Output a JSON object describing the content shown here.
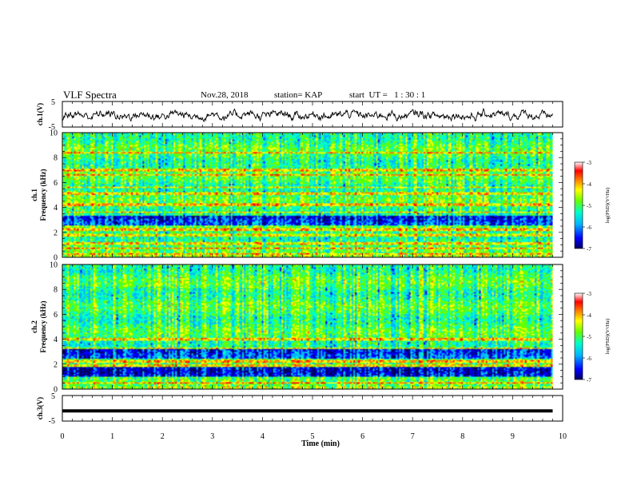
{
  "header": {
    "title": "VLF Spectra",
    "date": "Nov.28, 2018",
    "station": "station= KAP",
    "start_ut": "start  UT =   1 : 30 : 1"
  },
  "colors": {
    "trace": "#000000",
    "axes": "#000000",
    "colormap": [
      "#000060",
      "#0000ff",
      "#00b4ff",
      "#00ffc8",
      "#64ff00",
      "#ffff00",
      "#ff7800",
      "#ff0000",
      "#ffffff"
    ]
  },
  "chart_data": [
    {
      "type": "line",
      "name": "ch1-waveform",
      "ylabel": "ch.1(V)",
      "yticks": [
        "5",
        "-5"
      ],
      "ylim": [
        -5,
        5
      ],
      "xlim": [
        0,
        10
      ],
      "note_values": "noisy waveform roughly between -4 and 2 V over 0–9.8 min"
    },
    {
      "type": "heatmap",
      "name": "ch1-spectrogram",
      "ylabel_top": "ch.1",
      "ylabel": "Frequency (kHz)",
      "yticks": [
        "0",
        "2",
        "4",
        "6",
        "8",
        "10"
      ],
      "ylim": [
        0,
        10
      ],
      "xlim": [
        0,
        9.8
      ],
      "colorbar": {
        "label": "log(PSD)(V²/Hz)",
        "ticks": [
          "-3",
          "-4",
          "-5",
          "-6",
          "-7"
        ],
        "range": [
          -7,
          -3
        ]
      },
      "dark_bands_kHz": [
        [
          2.6,
          3.3
        ]
      ],
      "bright_lines_kHz": [
        0.3,
        0.7,
        1.1,
        1.8,
        2.2,
        3.6,
        4.2,
        5.1,
        5.6,
        6.6,
        7.0,
        8.4
      ]
    },
    {
      "type": "heatmap",
      "name": "ch2-spectrogram",
      "ylabel_top": "ch.2",
      "ylabel": "Frequency (kHz)",
      "yticks": [
        "0",
        "2",
        "4",
        "6",
        "8",
        "10"
      ],
      "ylim": [
        0,
        10
      ],
      "xlim": [
        0,
        9.8
      ],
      "colorbar": {
        "label": "log(PSD)(V²/Hz)",
        "ticks": [
          "-3",
          "-4",
          "-5",
          "-6",
          "-7"
        ],
        "range": [
          -7,
          -3
        ]
      },
      "dark_bands_kHz": [
        [
          2.4,
          3.2
        ],
        [
          1.0,
          1.8
        ]
      ],
      "bright_lines_kHz": [
        0.5,
        1.9,
        2.2,
        3.3,
        4.0
      ]
    },
    {
      "type": "line",
      "name": "ch3-waveform",
      "ylabel": "ch.3(V)",
      "yticks": [
        "5",
        "-5"
      ],
      "ylim": [
        -5,
        5
      ],
      "xlim": [
        0,
        10
      ],
      "y": [
        -1,
        -1
      ]
    }
  ],
  "xaxis": {
    "label": "Time (min)",
    "ticks": [
      "0",
      "1",
      "2",
      "3",
      "4",
      "5",
      "6",
      "7",
      "8",
      "9",
      "10"
    ]
  }
}
